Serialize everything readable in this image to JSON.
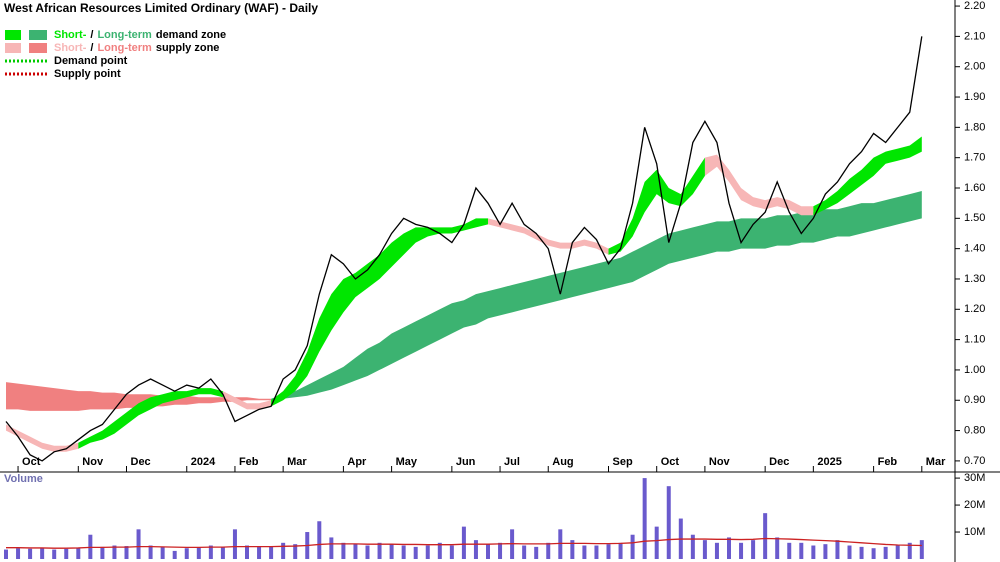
{
  "chart_data": {
    "type": "line",
    "title": "West African Resources Limited Ordinary (WAF) - Daily",
    "categories": [
      null,
      "Oct",
      null,
      null,
      null,
      null,
      "Nov",
      null,
      null,
      null,
      "Dec",
      null,
      null,
      null,
      null,
      "2024",
      null,
      null,
      null,
      "Feb",
      null,
      null,
      null,
      "Mar",
      null,
      null,
      null,
      null,
      "Apr",
      null,
      null,
      null,
      "May",
      null,
      null,
      null,
      null,
      "Jun",
      null,
      null,
      null,
      "Jul",
      null,
      null,
      null,
      "Aug",
      null,
      null,
      null,
      null,
      "Sep",
      null,
      null,
      null,
      "Oct",
      null,
      null,
      null,
      "Nov",
      null,
      null,
      null,
      null,
      "Dec",
      null,
      null,
      null,
      "2025",
      null,
      null,
      null,
      null,
      "Feb",
      null,
      null,
      null,
      "Mar"
    ],
    "ylim": [
      0.67,
      2.22
    ],
    "yticks": [
      {
        "value": 0.7,
        "label": "0.70"
      },
      {
        "value": 0.8,
        "label": "0.80"
      },
      {
        "value": 0.9,
        "label": "0.90"
      },
      {
        "value": 1.0,
        "label": "1.00"
      },
      {
        "value": 1.1,
        "label": "1.10"
      },
      {
        "value": 1.2,
        "label": "1.20"
      },
      {
        "value": 1.3,
        "label": "1.30"
      },
      {
        "value": 1.4,
        "label": "1.40"
      },
      {
        "value": 1.5,
        "label": "1.50"
      },
      {
        "value": 1.6,
        "label": "1.60"
      },
      {
        "value": 1.7,
        "label": "1.70"
      },
      {
        "value": 1.8,
        "label": "1.80"
      },
      {
        "value": 1.9,
        "label": "1.90"
      },
      {
        "value": 2.0,
        "label": "2.00"
      },
      {
        "value": 2.1,
        "label": "2.10"
      },
      {
        "value": 2.2,
        "label": "2.20"
      }
    ],
    "price": {
      "color": "#000000",
      "values": [
        0.83,
        0.78,
        0.72,
        0.7,
        0.73,
        0.74,
        0.77,
        0.8,
        0.82,
        0.87,
        0.92,
        0.95,
        0.97,
        0.95,
        0.93,
        0.95,
        0.94,
        0.97,
        0.92,
        0.83,
        0.85,
        0.87,
        0.88,
        0.97,
        1.0,
        1.08,
        1.25,
        1.38,
        1.35,
        1.3,
        1.33,
        1.38,
        1.45,
        1.5,
        1.48,
        1.47,
        1.45,
        1.42,
        1.48,
        1.6,
        1.55,
        1.48,
        1.55,
        1.48,
        1.45,
        1.4,
        1.25,
        1.42,
        1.47,
        1.43,
        1.35,
        1.4,
        1.55,
        1.8,
        1.68,
        1.42,
        1.55,
        1.75,
        1.82,
        1.75,
        1.55,
        1.42,
        1.48,
        1.52,
        1.62,
        1.52,
        1.45,
        1.5,
        1.58,
        1.62,
        1.68,
        1.72,
        1.78,
        1.75,
        1.8,
        1.85,
        2.1
      ]
    },
    "long_supply_zone": {
      "color": "#f08080",
      "upper": [
        0.96,
        0.955,
        0.95,
        0.945,
        0.94,
        0.935,
        0.93,
        0.93,
        0.925,
        0.925,
        0.92,
        0.92,
        0.92,
        0.915,
        0.915,
        0.915,
        0.91,
        0.91,
        0.91,
        0.91,
        0.91,
        0.905,
        0.905,
        null,
        null,
        null,
        null,
        null,
        null,
        null,
        null,
        null,
        null,
        null,
        null,
        null,
        null,
        null,
        null,
        null,
        null,
        null,
        null,
        null,
        null,
        null,
        null,
        null,
        null,
        null,
        null,
        null,
        null,
        null,
        null,
        null,
        null,
        null,
        null,
        null,
        null,
        null,
        null,
        null,
        null,
        null,
        null,
        null,
        null,
        null,
        null,
        null,
        null,
        null,
        null,
        null,
        null
      ],
      "lower": [
        0.87,
        0.87,
        0.865,
        0.865,
        0.865,
        0.865,
        0.865,
        0.87,
        0.87,
        0.87,
        0.875,
        0.875,
        0.88,
        0.88,
        0.885,
        0.885,
        0.89,
        0.89,
        0.895,
        0.895,
        0.9,
        0.9,
        0.9,
        null,
        null,
        null,
        null,
        null,
        null,
        null,
        null,
        null,
        null,
        null,
        null,
        null,
        null,
        null,
        null,
        null,
        null,
        null,
        null,
        null,
        null,
        null,
        null,
        null,
        null,
        null,
        null,
        null,
        null,
        null,
        null,
        null,
        null,
        null,
        null,
        null,
        null,
        null,
        null,
        null,
        null,
        null,
        null,
        null,
        null,
        null,
        null,
        null,
        null,
        null,
        null,
        null,
        null
      ]
    },
    "long_demand_zone": {
      "color": "#3cb371",
      "upper": [
        null,
        null,
        null,
        null,
        null,
        null,
        null,
        null,
        null,
        null,
        null,
        null,
        null,
        null,
        null,
        null,
        null,
        null,
        null,
        null,
        null,
        null,
        0.905,
        0.92,
        0.93,
        0.95,
        0.97,
        0.99,
        1.01,
        1.04,
        1.07,
        1.09,
        1.12,
        1.14,
        1.16,
        1.18,
        1.2,
        1.22,
        1.23,
        1.25,
        1.26,
        1.27,
        1.28,
        1.29,
        1.3,
        1.31,
        1.32,
        1.33,
        1.34,
        1.35,
        1.36,
        1.37,
        1.39,
        1.41,
        1.43,
        1.45,
        1.46,
        1.47,
        1.48,
        1.49,
        1.49,
        1.5,
        1.5,
        1.5,
        1.51,
        1.51,
        1.52,
        1.52,
        1.53,
        1.53,
        1.54,
        1.55,
        1.55,
        1.56,
        1.57,
        1.58,
        1.59
      ],
      "lower": [
        null,
        null,
        null,
        null,
        null,
        null,
        null,
        null,
        null,
        null,
        null,
        null,
        null,
        null,
        null,
        null,
        null,
        null,
        null,
        null,
        null,
        null,
        0.9,
        0.905,
        0.91,
        0.915,
        0.925,
        0.935,
        0.95,
        0.965,
        0.98,
        1.0,
        1.02,
        1.04,
        1.06,
        1.08,
        1.1,
        1.12,
        1.14,
        1.15,
        1.17,
        1.18,
        1.19,
        1.2,
        1.21,
        1.22,
        1.23,
        1.24,
        1.25,
        1.26,
        1.27,
        1.28,
        1.29,
        1.31,
        1.33,
        1.35,
        1.36,
        1.37,
        1.38,
        1.39,
        1.39,
        1.4,
        1.4,
        1.4,
        1.41,
        1.41,
        1.42,
        1.42,
        1.43,
        1.44,
        1.44,
        1.45,
        1.46,
        1.47,
        1.48,
        1.49,
        1.5
      ]
    },
    "short_supply_zone": {
      "color": "#f7b6b6",
      "upper": [
        0.82,
        0.8,
        0.78,
        0.76,
        0.75,
        0.75,
        0.76,
        null,
        null,
        null,
        null,
        null,
        null,
        null,
        null,
        null,
        null,
        null,
        0.93,
        0.91,
        0.89,
        0.89,
        0.9,
        null,
        null,
        null,
        null,
        null,
        null,
        null,
        null,
        null,
        null,
        null,
        null,
        null,
        null,
        null,
        null,
        null,
        1.5,
        1.49,
        1.48,
        1.47,
        1.45,
        1.43,
        1.42,
        1.42,
        1.43,
        1.42,
        1.4,
        null,
        null,
        null,
        null,
        null,
        null,
        null,
        1.7,
        1.71,
        1.66,
        1.6,
        1.57,
        1.56,
        1.57,
        1.56,
        1.54,
        1.54,
        null,
        null,
        null,
        null,
        null,
        null,
        null,
        null,
        null
      ],
      "lower": [
        0.8,
        0.78,
        0.76,
        0.74,
        0.73,
        0.73,
        0.74,
        null,
        null,
        null,
        null,
        null,
        null,
        null,
        null,
        null,
        null,
        null,
        0.91,
        0.89,
        0.87,
        0.87,
        0.88,
        null,
        null,
        null,
        null,
        null,
        null,
        null,
        null,
        null,
        null,
        null,
        null,
        null,
        null,
        null,
        null,
        null,
        1.48,
        1.47,
        1.46,
        1.45,
        1.43,
        1.41,
        1.4,
        1.4,
        1.41,
        1.4,
        1.38,
        null,
        null,
        null,
        null,
        null,
        null,
        null,
        1.64,
        1.67,
        1.62,
        1.56,
        1.54,
        1.53,
        1.54,
        1.53,
        1.51,
        1.51,
        null,
        null,
        null,
        null,
        null,
        null,
        null,
        null,
        null
      ]
    },
    "short_demand_zone": {
      "color": "#00e600",
      "upper": [
        null,
        null,
        null,
        null,
        null,
        null,
        0.76,
        0.78,
        0.8,
        0.83,
        0.86,
        0.89,
        0.91,
        0.92,
        0.93,
        0.93,
        0.94,
        0.94,
        0.93,
        null,
        null,
        null,
        0.9,
        0.93,
        0.98,
        1.06,
        1.17,
        1.25,
        1.3,
        1.32,
        1.35,
        1.38,
        1.42,
        1.45,
        1.47,
        1.47,
        1.47,
        1.47,
        1.48,
        1.5,
        1.5,
        null,
        null,
        null,
        null,
        null,
        null,
        null,
        null,
        null,
        1.4,
        1.42,
        1.5,
        1.62,
        1.66,
        1.6,
        1.58,
        1.64,
        1.7,
        null,
        null,
        null,
        null,
        null,
        null,
        null,
        null,
        1.54,
        1.56,
        1.59,
        1.63,
        1.66,
        1.7,
        1.72,
        1.73,
        1.74,
        1.77
      ],
      "lower": [
        null,
        null,
        null,
        null,
        null,
        null,
        0.74,
        0.76,
        0.77,
        0.79,
        0.82,
        0.85,
        0.87,
        0.89,
        0.9,
        0.91,
        0.92,
        0.92,
        0.91,
        null,
        null,
        null,
        0.88,
        0.9,
        0.93,
        0.98,
        1.06,
        1.13,
        1.19,
        1.24,
        1.27,
        1.3,
        1.34,
        1.38,
        1.42,
        1.44,
        1.45,
        1.45,
        1.46,
        1.47,
        1.48,
        null,
        null,
        null,
        null,
        null,
        null,
        null,
        null,
        null,
        1.38,
        1.39,
        1.44,
        1.52,
        1.58,
        1.55,
        1.54,
        1.58,
        1.64,
        null,
        null,
        null,
        null,
        null,
        null,
        null,
        null,
        1.51,
        1.53,
        1.55,
        1.58,
        1.61,
        1.64,
        1.68,
        1.69,
        1.7,
        1.72
      ]
    },
    "legend": [
      {
        "short": "Short-",
        "separator": "/",
        "long": "Long-term",
        "label": "demand zone"
      },
      {
        "short": "Short-",
        "separator": "/",
        "long": "Long-term",
        "label": "supply zone"
      },
      {
        "label": "Demand point",
        "color": "#00cc00"
      },
      {
        "label": "Supply point",
        "color": "#cc0000"
      }
    ],
    "volume": {
      "title": "Volume",
      "color": "#6a5acd",
      "average_color": "#cc2222",
      "ylim": [
        0,
        33000000
      ],
      "yticks": [
        {
          "value": 10000000,
          "label": "10M"
        },
        {
          "value": 20000000,
          "label": "20M"
        },
        {
          "value": 30000000,
          "label": "30M"
        }
      ],
      "values": [
        3500000,
        4000000,
        3800000,
        4200000,
        3500000,
        3800000,
        4000000,
        9000000,
        4500000,
        5000000,
        4800000,
        11000000,
        5000000,
        4500000,
        3000000,
        4000000,
        4200000,
        5000000,
        4500000,
        11000000,
        5000000,
        4500000,
        4800000,
        6000000,
        5500000,
        10000000,
        14000000,
        8000000,
        6000000,
        5500000,
        5000000,
        6000000,
        5500000,
        5000000,
        4500000,
        5000000,
        6000000,
        5000000,
        12000000,
        7000000,
        5500000,
        6000000,
        11000000,
        5000000,
        4500000,
        6000000,
        11000000,
        7000000,
        5000000,
        5000000,
        5500000,
        6000000,
        9000000,
        30000000,
        12000000,
        27000000,
        15000000,
        9000000,
        7000000,
        6000000,
        8000000,
        6000000,
        7000000,
        17000000,
        8000000,
        6000000,
        6000000,
        5000000,
        5500000,
        7000000,
        5000000,
        4500000,
        4000000,
        4500000,
        5000000,
        6000000,
        7000000
      ],
      "average": [
        4200000,
        4200000,
        4100000,
        4100000,
        4000000,
        4000000,
        4100000,
        4300000,
        4300000,
        4400000,
        4400000,
        4600000,
        4600000,
        4500000,
        4400000,
        4300000,
        4300000,
        4400000,
        4400000,
        4600000,
        4600000,
        4600000,
        4600000,
        4700000,
        4800000,
        5000000,
        5400000,
        5600000,
        5600000,
        5600000,
        5500000,
        5500000,
        5500000,
        5400000,
        5400000,
        5300000,
        5300000,
        5300000,
        5500000,
        5500000,
        5500000,
        5600000,
        5700000,
        5600000,
        5600000,
        5600000,
        5800000,
        5800000,
        5800000,
        5700000,
        5700000,
        5800000,
        6000000,
        6600000,
        6800000,
        7200000,
        7400000,
        7400000,
        7400000,
        7300000,
        7300000,
        7200000,
        7300000,
        7600000,
        7500000,
        7400000,
        7200000,
        7000000,
        6800000,
        6600000,
        6300000,
        6000000,
        5700000,
        5400000,
        5200000,
        5100000,
        5000000
      ]
    }
  }
}
